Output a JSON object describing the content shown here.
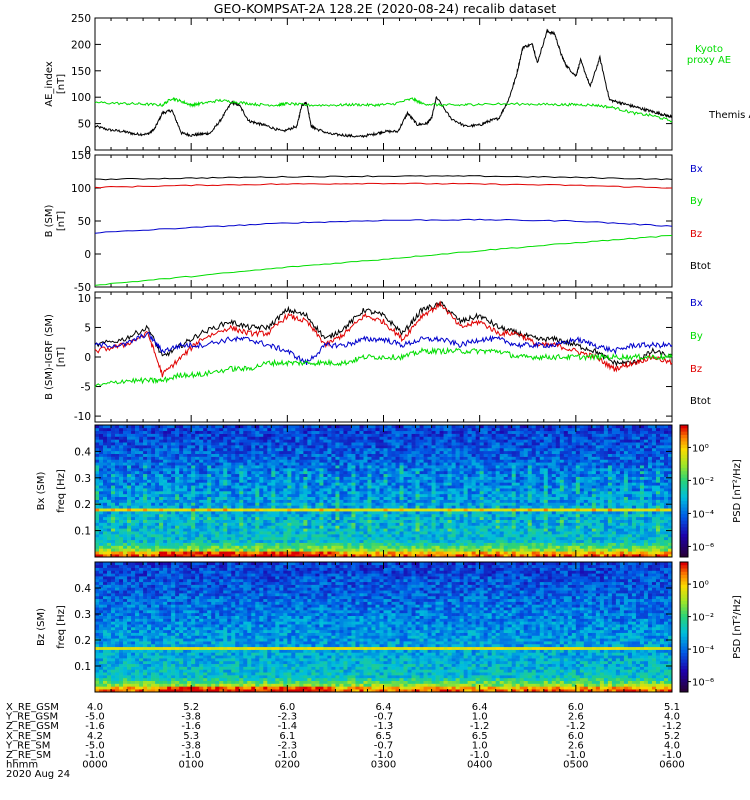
{
  "title": "GEO-KOMPSAT-2A 128.2E (2020-08-24) recalib dataset",
  "colors": {
    "black": "#000000",
    "red": "#e00000",
    "green": "#00dd00",
    "blue": "#0000cc"
  },
  "chart_data": [
    {
      "type": "line",
      "ylabel": "AE index [nT]",
      "ylim": [
        0,
        250
      ],
      "yticks": [
        0,
        50,
        100,
        150,
        200,
        250
      ],
      "x_hours": [
        0,
        6
      ],
      "legend": [
        {
          "name": "Kyoto proxy AE",
          "color": "#00dd00"
        },
        {
          "name": "Themis AE",
          "color": "#000000"
        }
      ],
      "series": [
        {
          "name": "Themis AE",
          "color": "#000000",
          "x": [
            0,
            0.15,
            0.3,
            0.42,
            0.55,
            0.62,
            0.7,
            0.8,
            0.9,
            1.0,
            1.1,
            1.2,
            1.3,
            1.42,
            1.5,
            1.6,
            1.7,
            1.8,
            1.95,
            2.1,
            2.15,
            2.2,
            2.25,
            2.3,
            2.45,
            2.6,
            2.75,
            2.9,
            3.0,
            3.15,
            3.25,
            3.35,
            3.45,
            3.5,
            3.55,
            3.7,
            3.85,
            4.0,
            4.1,
            4.2,
            4.3,
            4.38,
            4.45,
            4.55,
            4.6,
            4.7,
            4.78,
            4.85,
            4.9,
            5.0,
            5.05,
            5.15,
            5.25,
            5.35,
            5.45,
            5.55,
            5.65,
            5.75,
            5.85,
            5.95,
            6.0
          ],
          "y": [
            45,
            38,
            35,
            30,
            30,
            40,
            70,
            75,
            32,
            28,
            30,
            32,
            55,
            90,
            85,
            55,
            50,
            45,
            35,
            45,
            85,
            90,
            45,
            40,
            30,
            28,
            25,
            30,
            35,
            35,
            70,
            48,
            50,
            60,
            100,
            60,
            45,
            47,
            55,
            60,
            95,
            140,
            195,
            200,
            165,
            225,
            220,
            180,
            160,
            140,
            170,
            120,
            175,
            95,
            90,
            85,
            80,
            75,
            70,
            65,
            62
          ]
        },
        {
          "name": "Kyoto proxy AE",
          "color": "#00dd00",
          "x": [
            0,
            0.3,
            0.5,
            0.7,
            0.8,
            0.9,
            1.0,
            1.1,
            1.3,
            1.5,
            1.7,
            1.9,
            2.0,
            2.2,
            2.5,
            2.7,
            2.9,
            3.1,
            3.3,
            3.4,
            3.6,
            3.8,
            4.0,
            4.5,
            4.8,
            5.0,
            5.2,
            5.4,
            5.6,
            5.8,
            6.0
          ],
          "y": [
            90,
            88,
            87,
            85,
            98,
            92,
            85,
            88,
            94,
            90,
            86,
            85,
            88,
            85,
            85,
            86,
            85,
            87,
            97,
            88,
            85,
            85,
            87,
            87,
            86,
            86,
            85,
            80,
            70,
            65,
            55
          ]
        }
      ]
    },
    {
      "type": "line",
      "ylabel": "B (SM) [nT]",
      "ylim": [
        -50,
        150
      ],
      "yticks": [
        -50,
        0,
        50,
        100,
        150
      ],
      "legend": [
        {
          "name": "Bx",
          "color": "#0000cc"
        },
        {
          "name": "By",
          "color": "#00dd00"
        },
        {
          "name": "Bz",
          "color": "#e00000"
        },
        {
          "name": "Btot",
          "color": "#000000"
        }
      ],
      "series": [
        {
          "name": "Btot",
          "color": "#000000",
          "x": [
            0,
            1,
            2,
            3,
            4,
            5,
            6
          ],
          "y": [
            113,
            115,
            117,
            118,
            118,
            116,
            113
          ]
        },
        {
          "name": "Bz",
          "color": "#e00000",
          "x": [
            0,
            1,
            2,
            3,
            4,
            5,
            6
          ],
          "y": [
            101,
            104,
            106,
            107,
            106,
            104,
            100
          ]
        },
        {
          "name": "Bx",
          "color": "#0000cc",
          "x": [
            0,
            1,
            2,
            3,
            4,
            5,
            6
          ],
          "y": [
            32,
            40,
            47,
            51,
            52,
            50,
            42
          ]
        },
        {
          "name": "By",
          "color": "#00dd00",
          "x": [
            0,
            1,
            2,
            3,
            4,
            5,
            6
          ],
          "y": [
            -47,
            -34,
            -20,
            -8,
            5,
            17,
            28
          ]
        }
      ]
    },
    {
      "type": "line",
      "ylabel": "B (SM)-IGRF (SM) [nT]",
      "ylim": [
        -11,
        11
      ],
      "yticks": [
        -10,
        -5,
        0,
        5,
        10
      ],
      "legend": [
        {
          "name": "Bx",
          "color": "#0000cc"
        },
        {
          "name": "By",
          "color": "#00dd00"
        },
        {
          "name": "Bz",
          "color": "#e00000"
        },
        {
          "name": "Btot",
          "color": "#000000"
        }
      ],
      "series": [
        {
          "name": "Btot",
          "color": "#000000",
          "x": [
            0,
            0.3,
            0.55,
            0.7,
            0.9,
            1.1,
            1.4,
            1.6,
            1.8,
            2.0,
            2.2,
            2.4,
            2.6,
            2.8,
            3.0,
            3.2,
            3.4,
            3.6,
            3.8,
            4.0,
            4.2,
            4.4,
            4.6,
            4.8,
            5.0,
            5.2,
            5.4,
            5.6,
            5.8,
            6.0
          ],
          "y": [
            2,
            3,
            5,
            0,
            2,
            4,
            6,
            5,
            5,
            8,
            7,
            3,
            5,
            8,
            7,
            4,
            8,
            9,
            6,
            7,
            5,
            4,
            3,
            3,
            2,
            1,
            -1,
            -1,
            1,
            0
          ]
        },
        {
          "name": "Bz",
          "color": "#e00000",
          "x": [
            0,
            0.3,
            0.55,
            0.7,
            0.9,
            1.1,
            1.4,
            1.6,
            1.8,
            2.0,
            2.2,
            2.4,
            2.6,
            2.8,
            3.0,
            3.2,
            3.4,
            3.6,
            3.8,
            4.0,
            4.2,
            4.4,
            4.6,
            4.8,
            5.0,
            5.2,
            5.4,
            5.6,
            5.8,
            6.0
          ],
          "y": [
            1,
            2,
            4,
            -3,
            0,
            3,
            5,
            4,
            4,
            7,
            6,
            2,
            4,
            7,
            6,
            3,
            7,
            9,
            5,
            6,
            4,
            4,
            2,
            2,
            1,
            0,
            -2,
            -1,
            0,
            -1
          ]
        },
        {
          "name": "Bx",
          "color": "#0000cc",
          "x": [
            0,
            0.3,
            0.55,
            0.7,
            0.9,
            1.1,
            1.4,
            1.6,
            1.8,
            2.0,
            2.2,
            2.4,
            2.6,
            2.8,
            3.0,
            3.2,
            3.4,
            3.6,
            3.8,
            4.0,
            4.2,
            4.4,
            4.6,
            4.8,
            5.0,
            5.2,
            5.4,
            5.6,
            5.8,
            6.0
          ],
          "y": [
            2,
            2,
            4,
            1,
            2,
            2,
            3,
            3,
            2,
            1,
            -1,
            2,
            2,
            3,
            3,
            2,
            3,
            3,
            2,
            3,
            3,
            2,
            2,
            2,
            3,
            2,
            1,
            2,
            2,
            2
          ]
        },
        {
          "name": "By",
          "color": "#00dd00",
          "x": [
            0,
            0.3,
            0.55,
            0.7,
            0.9,
            1.1,
            1.4,
            1.6,
            1.8,
            2.0,
            2.2,
            2.4,
            2.6,
            2.8,
            3.0,
            3.2,
            3.4,
            3.6,
            3.8,
            4.0,
            4.2,
            4.4,
            4.6,
            4.8,
            5.0,
            5.2,
            5.4,
            5.6,
            5.8,
            6.0
          ],
          "y": [
            -5,
            -4,
            -4,
            -4,
            -3,
            -3,
            -2,
            -2,
            -1,
            -1,
            -1,
            -1,
            -1,
            0,
            0,
            0,
            1,
            1,
            1,
            1,
            1,
            0,
            0,
            0,
            0,
            0,
            0,
            0,
            0,
            0
          ]
        }
      ]
    },
    {
      "type": "heatmap",
      "ylabel": "Bx (SM) freq [Hz]",
      "ylim": [
        0,
        0.5
      ],
      "yticks": [
        0.1,
        0.2,
        0.3,
        0.4
      ],
      "colorbar": {
        "label": "PSD [nT²/Hz]",
        "ticks": [
          "10⁰",
          "10⁻²",
          "10⁻⁴",
          "10⁻⁶"
        ]
      }
    },
    {
      "type": "heatmap",
      "ylabel": "Bz (SM) freq [Hz]",
      "ylim": [
        0,
        0.5
      ],
      "yticks": [
        0.1,
        0.2,
        0.3,
        0.4
      ],
      "colorbar": {
        "label": "PSD [nT²/Hz]",
        "ticks": [
          "10⁰",
          "10⁻²",
          "10⁻⁴",
          "10⁻⁶"
        ]
      }
    }
  ],
  "ephemeris": {
    "row_labels": [
      "X_RE_GSM",
      "Y_RE_GSM",
      "Z_RE_GSM",
      "X_RE_SM",
      "Y_RE_SM",
      "Z_RE_SM",
      "hhmm"
    ],
    "columns": [
      [
        "4.0",
        "-5.0",
        "-1.6",
        "4.2",
        "-5.0",
        "-1.0",
        "0000"
      ],
      [
        "5.2",
        "-3.8",
        "-1.6",
        "5.3",
        "-3.8",
        "-1.0",
        "0100"
      ],
      [
        "6.0",
        "-2.3",
        "-1.4",
        "6.1",
        "-2.3",
        "-1.0",
        "0200"
      ],
      [
        "6.4",
        "-0.7",
        "-1.3",
        "6.5",
        "-0.7",
        "-1.0",
        "0300"
      ],
      [
        "6.4",
        "1.0",
        "-1.2",
        "6.5",
        "1.0",
        "-1.0",
        "0400"
      ],
      [
        "6.0",
        "2.6",
        "-1.2",
        "6.0",
        "2.6",
        "-1.0",
        "0500"
      ],
      [
        "5.1",
        "4.0",
        "-1.2",
        "5.2",
        "4.0",
        "-1.0",
        "0600"
      ]
    ],
    "date": "2020 Aug 24"
  }
}
